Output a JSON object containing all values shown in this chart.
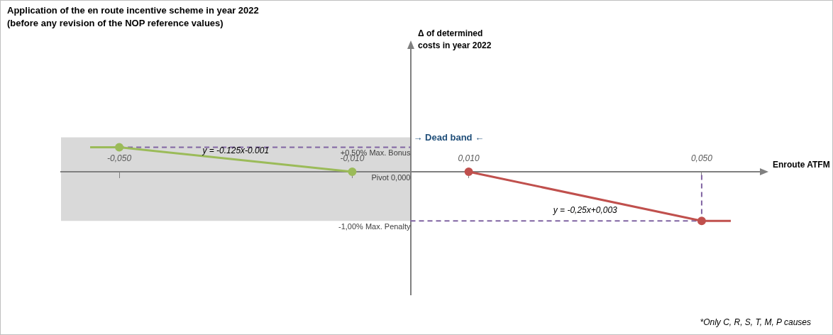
{
  "chart_data": {
    "type": "line",
    "title": "Application of the en route incentive scheme in year 2022",
    "subtitle": "(before any revision of the NOP reference values)",
    "xlabel": "Enroute ATFM",
    "ylabel": "Δ of determined costs in year 2022",
    "xlim": [
      -0.06,
      0.06
    ],
    "ylim": [
      -2.5,
      2.5
    ],
    "xticks": [
      {
        "value": -0.05,
        "label": "-0,050"
      },
      {
        "value": -0.01,
        "label": "-0,010"
      },
      {
        "value": 0.01,
        "label": "0,010"
      },
      {
        "value": 0.05,
        "label": "0,050"
      }
    ],
    "yticks": [
      {
        "value": 0.5,
        "label": "+0,50% Max. Bonus"
      },
      {
        "value": 0,
        "label": "Pivot 0,000"
      },
      {
        "value": -1,
        "label": "-1,00% Max. Penalty"
      }
    ],
    "grid": false,
    "legend": false,
    "series": [
      {
        "color": "#9bbb59",
        "line_style": "solid",
        "x": [
          -0.055,
          -0.05
        ],
        "values": [
          0.5,
          0.5
        ]
      },
      {
        "color": "#9bbb59",
        "marker": "circle",
        "line_style": "solid",
        "x": [
          -0.05,
          -0.01
        ],
        "values": [
          0.5,
          0
        ]
      },
      {
        "color": "#c0504d",
        "marker": "circle",
        "line_style": "solid",
        "x": [
          0.01,
          0.05
        ],
        "values": [
          0,
          -1
        ]
      },
      {
        "color": "#c0504d",
        "line_style": "solid",
        "x": [
          0.05,
          0.055
        ],
        "values": [
          -1,
          -1
        ]
      },
      {
        "color": "#8064a2",
        "marker": "none",
        "line_style": "dashed",
        "x": [
          -0.05,
          0
        ],
        "values": [
          0.5,
          0.5
        ]
      },
      {
        "color": "#8064a2",
        "marker": "none",
        "line_style": "dashed",
        "x": [
          0,
          0.05,
          0.05
        ],
        "values": [
          -1,
          -1,
          0
        ]
      }
    ],
    "bands": [
      {
        "axis": "y",
        "from": -1,
        "to": 0.7,
        "color": "#d9d9d9"
      }
    ],
    "annotations": [
      {
        "text": "y = -0.125x-0.001",
        "x": -0.03,
        "y": 0.25
      },
      {
        "text": "y = -0,25x+0,003",
        "x": 0.03,
        "y": -0.5
      },
      {
        "text": "→ Dead band ←",
        "x": 0,
        "y": 0.5
      },
      "*Only C, R, S, T, M, P causes"
    ]
  }
}
